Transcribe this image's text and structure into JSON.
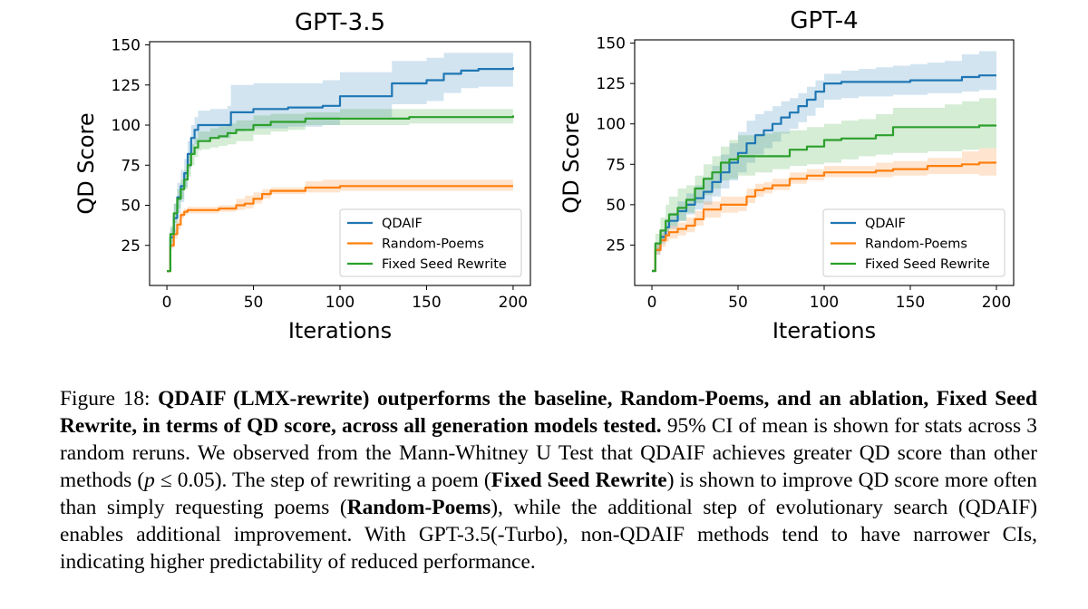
{
  "chart_data": [
    {
      "type": "line",
      "title": "GPT-3.5",
      "xlabel": "Iterations",
      "ylabel": "QD Score",
      "xlim": [
        -10,
        210
      ],
      "ylim": [
        0,
        152
      ],
      "xticks": [
        0,
        50,
        100,
        150,
        200
      ],
      "yticks": [
        25,
        50,
        75,
        100,
        125,
        150
      ],
      "legend": "lower-right",
      "series": [
        {
          "name": "QDAIF",
          "color": "#1f77b4",
          "x": [
            0,
            2,
            4,
            6,
            8,
            10,
            12,
            14,
            16,
            18,
            20,
            22,
            25,
            30,
            35,
            37,
            40,
            45,
            50,
            60,
            70,
            80,
            90,
            100,
            110,
            120,
            130,
            140,
            150,
            160,
            170,
            180,
            190,
            200
          ],
          "y": [
            9,
            30,
            42,
            55,
            62,
            70,
            82,
            92,
            97,
            100,
            100,
            100,
            100,
            100,
            100,
            108,
            108,
            108,
            110,
            110,
            111,
            111,
            112,
            118,
            118,
            118,
            126,
            126,
            128,
            132,
            134,
            135,
            135,
            136
          ],
          "lower": [
            9,
            24,
            33,
            45,
            52,
            61,
            73,
            82,
            88,
            90,
            90,
            90,
            92,
            92,
            92,
            96,
            96,
            97,
            98,
            98,
            99,
            99,
            100,
            105,
            105,
            105,
            113,
            113,
            115,
            120,
            123,
            124,
            124,
            125
          ],
          "upper": [
            9,
            36,
            51,
            64,
            72,
            79,
            90,
            100,
            105,
            109,
            109,
            109,
            110,
            110,
            112,
            125,
            125,
            125,
            126,
            126,
            126,
            126,
            128,
            133,
            133,
            133,
            140,
            140,
            142,
            145,
            145,
            145,
            145,
            145
          ]
        },
        {
          "name": "Random-Poems",
          "color": "#ff7f0e",
          "x": [
            0,
            2,
            4,
            6,
            8,
            10,
            12,
            15,
            20,
            25,
            30,
            35,
            40,
            45,
            50,
            55,
            60,
            70,
            80,
            90,
            100,
            120,
            140,
            160,
            180,
            200
          ],
          "y": [
            9,
            25,
            32,
            38,
            44,
            46,
            47,
            47,
            47,
            47,
            48,
            48,
            50,
            51,
            54,
            57,
            59,
            59,
            61,
            61,
            62,
            62,
            62,
            62,
            62,
            62
          ],
          "lower": [
            9,
            23,
            29,
            35,
            42,
            44,
            45,
            45,
            45,
            45,
            46,
            46,
            47,
            48,
            51,
            54,
            57,
            57,
            58,
            58,
            59,
            59,
            59,
            59,
            59,
            59
          ],
          "upper": [
            9,
            27,
            35,
            41,
            46,
            48,
            49,
            49,
            49,
            49,
            50,
            50,
            54,
            56,
            58,
            60,
            61,
            61,
            65,
            66,
            66,
            66,
            66,
            66,
            66,
            66
          ]
        },
        {
          "name": "Fixed Seed Rewrite",
          "color": "#2ca02c",
          "x": [
            0,
            2,
            4,
            6,
            8,
            10,
            12,
            14,
            16,
            18,
            20,
            25,
            30,
            35,
            40,
            50,
            60,
            70,
            80,
            90,
            100,
            120,
            140,
            160,
            180,
            200
          ],
          "y": [
            9,
            32,
            45,
            54,
            60,
            66,
            75,
            82,
            86,
            90,
            90,
            92,
            93,
            95,
            97,
            100,
            102,
            102,
            104,
            104,
            104,
            104,
            105,
            105,
            105,
            106
          ],
          "lower": [
            9,
            27,
            39,
            48,
            54,
            60,
            68,
            75,
            80,
            84,
            85,
            86,
            87,
            88,
            90,
            94,
            96,
            97,
            100,
            100,
            100,
            100,
            101,
            101,
            101,
            102
          ],
          "upper": [
            9,
            37,
            51,
            60,
            66,
            72,
            82,
            88,
            92,
            96,
            96,
            98,
            99,
            101,
            103,
            106,
            107,
            107,
            108,
            108,
            110,
            110,
            110,
            110,
            110,
            110
          ]
        }
      ]
    },
    {
      "type": "line",
      "title": "GPT-4",
      "xlabel": "Iterations",
      "ylabel": "QD Score",
      "xlim": [
        -10,
        210
      ],
      "ylim": [
        0,
        152
      ],
      "xticks": [
        0,
        50,
        100,
        150,
        200
      ],
      "yticks": [
        25,
        50,
        75,
        100,
        125,
        150
      ],
      "legend": "lower-right",
      "series": [
        {
          "name": "QDAIF",
          "color": "#1f77b4",
          "x": [
            0,
            2,
            5,
            8,
            10,
            15,
            20,
            25,
            30,
            35,
            40,
            45,
            50,
            55,
            60,
            65,
            70,
            75,
            80,
            85,
            90,
            95,
            100,
            110,
            120,
            130,
            140,
            150,
            160,
            170,
            180,
            190,
            200
          ],
          "y": [
            9,
            22,
            30,
            36,
            40,
            46,
            50,
            54,
            58,
            64,
            70,
            76,
            82,
            88,
            93,
            96,
            100,
            104,
            107,
            111,
            115,
            120,
            125,
            126,
            126,
            126,
            126,
            127,
            127,
            127,
            129,
            130,
            130
          ],
          "lower": [
            9,
            19,
            26,
            31,
            35,
            40,
            44,
            47,
            50,
            55,
            60,
            65,
            70,
            76,
            81,
            85,
            89,
            94,
            97,
            101,
            105,
            110,
            115,
            116,
            117,
            117,
            118,
            118,
            119,
            119,
            120,
            121,
            121
          ],
          "upper": [
            9,
            26,
            34,
            41,
            45,
            52,
            57,
            62,
            67,
            74,
            81,
            88,
            95,
            102,
            106,
            108,
            111,
            114,
            116,
            119,
            123,
            127,
            131,
            133,
            134,
            135,
            136,
            137,
            138,
            139,
            143,
            145,
            145
          ]
        },
        {
          "name": "Random-Poems",
          "color": "#ff7f0e",
          "x": [
            0,
            2,
            5,
            8,
            10,
            15,
            20,
            25,
            30,
            40,
            50,
            55,
            60,
            65,
            70,
            75,
            80,
            90,
            100,
            110,
            120,
            130,
            140,
            150,
            160,
            170,
            180,
            190,
            200
          ],
          "y": [
            9,
            22,
            28,
            31,
            33,
            35,
            37,
            41,
            47,
            50,
            50,
            55,
            59,
            60,
            62,
            62,
            66,
            68,
            70,
            70,
            70,
            71,
            72,
            72,
            74,
            74,
            75,
            76,
            76
          ],
          "lower": [
            9,
            19,
            24,
            27,
            29,
            31,
            33,
            37,
            42,
            45,
            46,
            51,
            55,
            57,
            59,
            59,
            63,
            65,
            67,
            67,
            67,
            67,
            68,
            68,
            69,
            69,
            69,
            68,
            68
          ],
          "upper": [
            9,
            25,
            32,
            35,
            37,
            39,
            42,
            46,
            52,
            55,
            55,
            60,
            63,
            64,
            66,
            66,
            70,
            72,
            74,
            74,
            74,
            76,
            77,
            77,
            79,
            79,
            83,
            85,
            85
          ]
        },
        {
          "name": "Fixed Seed Rewrite",
          "color": "#2ca02c",
          "x": [
            0,
            2,
            5,
            8,
            10,
            15,
            20,
            25,
            30,
            35,
            40,
            45,
            50,
            60,
            70,
            80,
            90,
            100,
            110,
            120,
            130,
            140,
            150,
            160,
            170,
            180,
            190,
            200
          ],
          "y": [
            9,
            26,
            34,
            40,
            44,
            48,
            53,
            60,
            66,
            70,
            76,
            78,
            80,
            80,
            80,
            84,
            86,
            90,
            91,
            91,
            93,
            98,
            98,
            98,
            98,
            98,
            99,
            99
          ],
          "lower": [
            9,
            21,
            28,
            33,
            37,
            40,
            45,
            51,
            56,
            60,
            65,
            66,
            68,
            70,
            72,
            74,
            75,
            76,
            78,
            80,
            81,
            82,
            82,
            83,
            83,
            84,
            85,
            85
          ],
          "upper": [
            9,
            32,
            42,
            50,
            55,
            60,
            62,
            68,
            75,
            80,
            86,
            90,
            93,
            94,
            95,
            96,
            98,
            100,
            102,
            103,
            106,
            110,
            110,
            110,
            112,
            114,
            116,
            116
          ]
        }
      ]
    }
  ],
  "caption": {
    "figure_label": "Figure 18:",
    "bold_lead": "QDAIF (LMX-rewrite) outperforms the baseline, Random-Poems, and an ablation, Fixed Seed Rewrite, in terms of QD score, across all generation models tested.",
    "text_1": "95% CI of mean is shown for stats across 3 random reruns. We observed from the Mann-Whitney U Test that QDAIF achieves greater QD score than other methods (",
    "math_p": "p",
    "math_rel": " ≤ 0.05",
    "text_2": "). The step of rewriting a poem (",
    "bold_fixed": "Fixed Seed Rewrite",
    "text_3": ") is shown to improve QD score more often than simply requesting poems (",
    "bold_random": "Random-Poems",
    "text_4": "), while the additional step of evolutionary search (QDAIF) enables additional improvement. With GPT-3.5(-Turbo), non-QDAIF methods tend to have narrower CIs, indicating higher predictability of reduced performance."
  }
}
